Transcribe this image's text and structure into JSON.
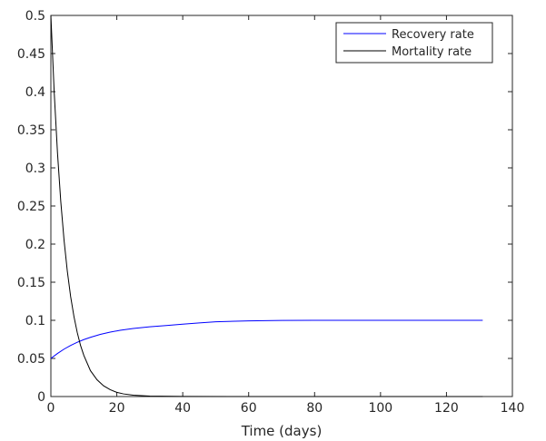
{
  "chart_data": {
    "type": "line",
    "title": "",
    "xlabel": "Time (days)",
    "ylabel": "",
    "xlim": [
      0,
      140
    ],
    "ylim": [
      0,
      0.5
    ],
    "xticks": [
      0,
      20,
      40,
      60,
      80,
      100,
      120,
      140
    ],
    "xtick_labels": [
      "0",
      "20",
      "40",
      "60",
      "80",
      "100",
      "120",
      "140"
    ],
    "yticks": [
      0,
      0.05,
      0.1,
      0.15,
      0.2,
      0.25,
      0.3,
      0.35,
      0.4,
      0.45,
      0.5
    ],
    "ytick_labels": [
      "0",
      "0.05",
      "0.1",
      "0.15",
      "0.2",
      "0.25",
      "0.3",
      "0.35",
      "0.4",
      "0.45",
      "0.5"
    ],
    "grid": false,
    "legend": "top-right",
    "series": [
      {
        "name": "Recovery rate",
        "color": "#0000ff",
        "x": [
          0,
          2,
          4,
          6,
          8,
          10,
          12,
          15,
          18,
          21,
          25,
          30,
          35,
          40,
          45,
          50,
          60,
          70,
          80,
          90,
          100,
          110,
          120,
          131
        ],
        "y": [
          0.05,
          0.0565,
          0.0622,
          0.067,
          0.0712,
          0.0747,
          0.0777,
          0.0815,
          0.0845,
          0.0869,
          0.0893,
          0.0915,
          0.0931,
          0.095,
          0.0966,
          0.098,
          0.0993,
          0.0998,
          0.1,
          0.1,
          0.1,
          0.1,
          0.1,
          0.1
        ]
      },
      {
        "name": "Mortality rate",
        "color": "#000000",
        "x": [
          0,
          1,
          2,
          3,
          4,
          5,
          6,
          7,
          8,
          9,
          10,
          12,
          14,
          16,
          18,
          20,
          22,
          25,
          30,
          40,
          60,
          80,
          100,
          120,
          131
        ],
        "y": [
          0.5,
          0.4,
          0.32,
          0.256,
          0.205,
          0.164,
          0.131,
          0.105,
          0.084,
          0.067,
          0.054,
          0.034,
          0.022,
          0.014,
          0.009,
          0.0055,
          0.0035,
          0.0018,
          0.0006,
          0.0001,
          0,
          0,
          0,
          0,
          0
        ]
      }
    ]
  }
}
